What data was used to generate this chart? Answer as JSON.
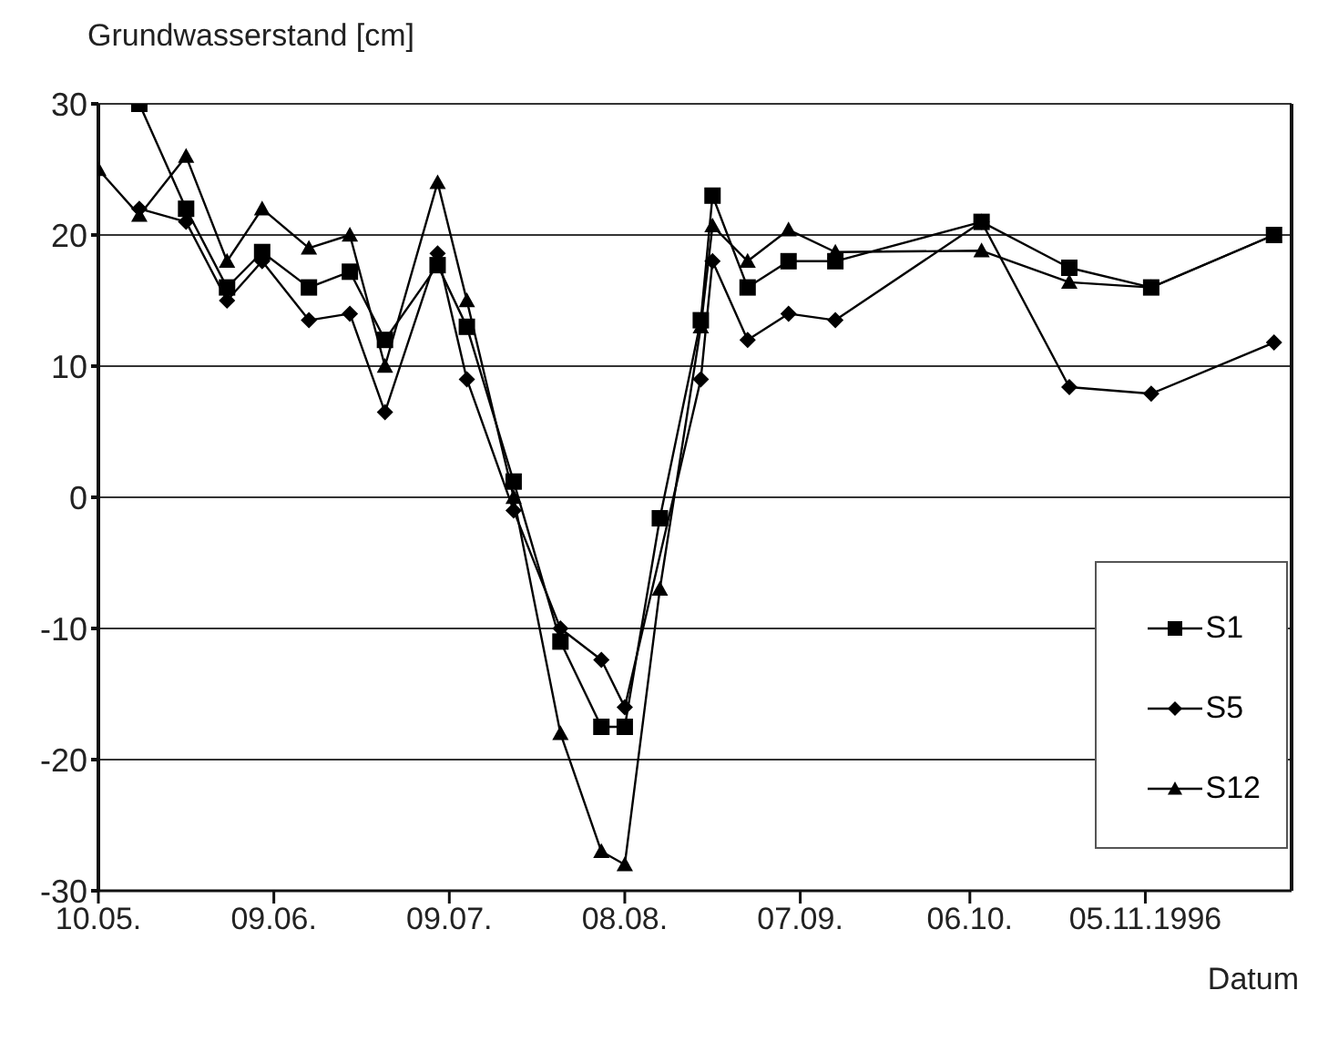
{
  "chart_data": {
    "type": "line",
    "ylabel": "Grundwasserstand [cm]",
    "xlabel": "Datum",
    "x": [
      "1996-05-10",
      "1996-05-17",
      "1996-05-25",
      "1996-06-01",
      "1996-06-07",
      "1996-06-15",
      "1996-06-22",
      "1996-06-28",
      "1996-07-07",
      "1996-07-12",
      "1996-07-20",
      "1996-07-28",
      "1996-08-04",
      "1996-08-08",
      "1996-08-14",
      "1996-08-21",
      "1996-08-23",
      "1996-08-29",
      "1996-09-05",
      "1996-09-13",
      "1996-10-08",
      "1996-10-23",
      "1996-11-06",
      "1996-11-27"
    ],
    "series": [
      {
        "name": "S1",
        "color": "#000000",
        "marker": "square",
        "values": [
          null,
          30,
          22,
          16,
          18.7,
          16,
          17.2,
          12,
          17.7,
          13,
          1.2,
          -11,
          -17.5,
          -17.5,
          -1.6,
          13.5,
          23,
          16,
          18,
          18,
          21,
          17.5,
          16,
          20
        ]
      },
      {
        "name": "S5",
        "color": "#000000",
        "marker": "diamond",
        "values": [
          null,
          22,
          21,
          15,
          18,
          13.5,
          14,
          6.5,
          18.6,
          9,
          -1,
          -10,
          -12.4,
          -16,
          null,
          9,
          18,
          12,
          14,
          13.5,
          21,
          8.4,
          7.9,
          11.8
        ]
      },
      {
        "name": "S12",
        "color": "#000000",
        "marker": "triangle",
        "values": [
          25,
          21.5,
          26,
          18,
          22,
          19,
          20,
          10,
          24,
          15,
          0,
          -18,
          -27,
          -28,
          -7,
          13,
          20.7,
          18,
          20.4,
          18.7,
          18.8,
          16.4,
          16,
          20
        ]
      }
    ],
    "xlim": [
      "1996-05-10",
      "1996-11-30"
    ],
    "xticks": [
      {
        "value": "1996-05-10",
        "label": "10.05."
      },
      {
        "value": "1996-06-09",
        "label": "09.06."
      },
      {
        "value": "1996-07-09",
        "label": "09.07."
      },
      {
        "value": "1996-08-08",
        "label": "08.08."
      },
      {
        "value": "1996-09-07",
        "label": "07.09."
      },
      {
        "value": "1996-10-06",
        "label": "06.10."
      },
      {
        "value": "1996-11-05",
        "label": "05.11.1996"
      }
    ],
    "ylim": [
      -30,
      30
    ],
    "yticks": [
      -30,
      -20,
      -10,
      0,
      10,
      20,
      30
    ],
    "grid": "y",
    "legend": "right",
    "line_style": "solid"
  }
}
